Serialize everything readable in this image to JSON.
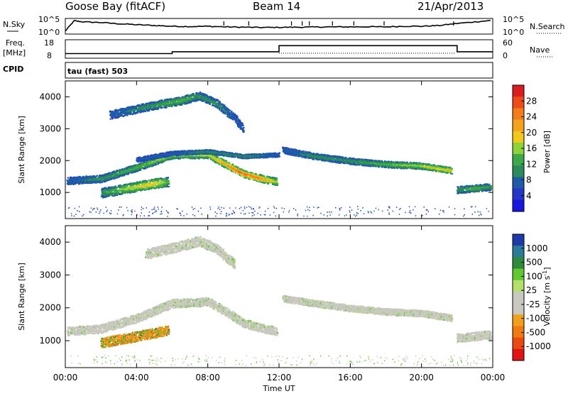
{
  "header": {
    "station": "Goose Bay (fitACF)",
    "beam": "Beam 14",
    "date": "21/Apr/2013"
  },
  "noise_panel": {
    "left_label": "N.Sky",
    "right_label": "N.Search",
    "left_ticks": [
      "10^5",
      "10^0"
    ],
    "right_ticks": [
      "10^5",
      "10^0"
    ]
  },
  "freq_panel": {
    "left_label_1": "Freq.",
    "left_label_2": "[MHz]",
    "right_label": "Nave",
    "left_ticks": [
      "18",
      "8"
    ],
    "right_ticks": [
      "60",
      "0"
    ]
  },
  "cpid_panel": {
    "label": "CPID",
    "value": "tau (fast) 503"
  },
  "power_panel": {
    "ylabel": "Slant Range [km]",
    "yticks": [
      "4000",
      "3000",
      "2000",
      "1000"
    ],
    "colorbar_label": "Power [dB]",
    "colorbar_ticks": [
      "28",
      "24",
      "20",
      "16",
      "12",
      "8",
      "4"
    ],
    "colorbar_colors": [
      "#d81e1e",
      "#ee4a1a",
      "#f27d1a",
      "#f4a11e",
      "#f2c81c",
      "#8ed13a",
      "#3da94a",
      "#2a8a5a",
      "#1e5aa8",
      "#2436c6",
      "#1616e0"
    ]
  },
  "velocity_panel": {
    "ylabel": "Slant Range [km]",
    "yticks": [
      "4000",
      "3000",
      "2000",
      "1000"
    ],
    "colorbar_label": "Velocity [m s",
    "colorbar_sup": "-1",
    "colorbar_label_end": "]",
    "colorbar_ticks": [
      "1000",
      "500",
      "100",
      "25",
      "-25",
      "-100",
      "-500",
      "-1000"
    ],
    "colorbar_colors": [
      "#1e3aa8",
      "#2a7a9a",
      "#2e8a3e",
      "#62c832",
      "#b4e06a",
      "#c8c8c0",
      "#c8c8c0",
      "#f2a01a",
      "#ee7a14",
      "#ea4a12",
      "#e01414"
    ]
  },
  "time_axis": {
    "label": "Time UT",
    "ticks": [
      "00:00",
      "04:00",
      "08:00",
      "12:00",
      "16:00",
      "20:00",
      "00:00"
    ]
  },
  "chart_data": [
    {
      "type": "line",
      "name": "noise",
      "x": [
        0,
        0.5,
        1,
        2,
        3,
        4,
        5,
        6,
        7,
        8,
        9,
        10,
        11,
        12,
        13,
        14,
        15,
        16,
        17,
        18,
        19,
        20,
        21,
        22,
        23,
        24
      ],
      "y": [
        0.2,
        0.85,
        0.78,
        0.74,
        0.66,
        0.6,
        0.55,
        0.5,
        0.48,
        0.5,
        0.46,
        0.44,
        0.42,
        0.43,
        0.44,
        0.45,
        0.46,
        0.46,
        0.47,
        0.46,
        0.5,
        0.5,
        0.55,
        0.68,
        0.78,
        0.88
      ],
      "xlim": [
        0,
        24
      ]
    },
    {
      "type": "line",
      "name": "frequency",
      "x": [
        0,
        6,
        6,
        12,
        12,
        22,
        22,
        24
      ],
      "y": [
        10.5,
        10.5,
        11.5,
        11.5,
        14.8,
        14.8,
        11.5,
        11.5
      ],
      "ylim": [
        8,
        18
      ],
      "xlim": [
        0,
        24
      ]
    },
    {
      "type": "heatmap",
      "name": "power",
      "xlim": [
        0,
        24
      ],
      "ylim": [
        180,
        4500
      ],
      "bands": [
        {
          "t": [
            2.5,
            4.5,
            6.5,
            7.5,
            8.5,
            9.5,
            10.0
          ],
          "r": [
            3450,
            3700,
            3900,
            4050,
            3800,
            3350,
            3000
          ],
          "w": 260,
          "level": [
            1,
            2,
            3,
            2,
            2,
            1,
            1
          ]
        },
        {
          "t": [
            0.1,
            2,
            4,
            6,
            8,
            9,
            10,
            11,
            11.9
          ],
          "r": [
            1380,
            1450,
            1800,
            2200,
            2200,
            1900,
            1600,
            1450,
            1350
          ],
          "w": 230,
          "level": [
            1,
            2,
            3,
            4,
            4,
            6,
            7,
            6,
            4
          ]
        },
        {
          "t": [
            4,
            6,
            8,
            10,
            12
          ],
          "r": [
            2050,
            2250,
            2300,
            2150,
            2200
          ],
          "w": 130,
          "level": [
            1,
            1,
            2,
            2,
            1
          ]
        },
        {
          "t": [
            12.2,
            14,
            16,
            18,
            20,
            21.7
          ],
          "r": [
            2350,
            2150,
            2000,
            1900,
            1850,
            1700
          ],
          "w": 200,
          "level": [
            1,
            2,
            2,
            3,
            4,
            5
          ]
        },
        {
          "t": [
            2,
            3.5,
            5,
            5.8
          ],
          "r": [
            1000,
            1150,
            1300,
            1350
          ],
          "w": 300,
          "level": [
            2,
            4,
            5,
            3
          ]
        },
        {
          "t": [
            22,
            23,
            24
          ],
          "r": [
            1100,
            1150,
            1200
          ],
          "w": 220,
          "level": [
            2,
            3,
            2
          ]
        }
      ]
    },
    {
      "type": "heatmap",
      "name": "velocity",
      "xlim": [
        0,
        24
      ],
      "ylim": [
        180,
        4500
      ],
      "bands": [
        {
          "t": [
            4.5,
            6.5,
            7.5,
            8.5,
            9.5
          ],
          "r": [
            3650,
            3900,
            4050,
            3800,
            3350
          ],
          "w": 300,
          "vel": "gray"
        },
        {
          "t": [
            0.1,
            2,
            4,
            6,
            8,
            9,
            10,
            11,
            11.9
          ],
          "r": [
            1300,
            1380,
            1700,
            2150,
            2200,
            1900,
            1550,
            1400,
            1300
          ],
          "w": 260,
          "vel": "gray"
        },
        {
          "t": [
            12.2,
            14,
            16,
            18,
            20,
            21.7
          ],
          "r": [
            2300,
            2150,
            2000,
            1900,
            1850,
            1700
          ],
          "w": 200,
          "vel": "gray"
        },
        {
          "t": [
            2,
            3.5,
            5,
            5.8
          ],
          "r": [
            950,
            1100,
            1250,
            1350
          ],
          "w": 300,
          "vel": "orange"
        },
        {
          "t": [
            22,
            23,
            24
          ],
          "r": [
            1100,
            1150,
            1200
          ],
          "w": 260,
          "vel": "gray"
        }
      ]
    }
  ]
}
